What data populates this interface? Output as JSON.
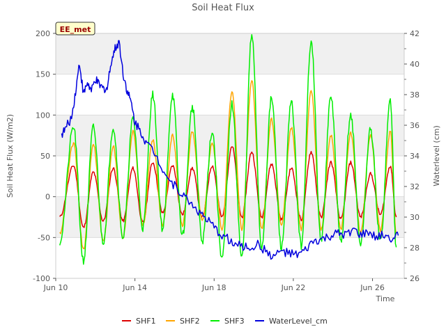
{
  "chart_data": {
    "type": "line",
    "title": "Soil Heat Flux",
    "xlabel": "Time",
    "ylabel": "Soil Heat Flux (W/m2)",
    "y2label": "Waterlevel (cm)",
    "annotation": "EE_met",
    "xlim": [
      0,
      17.6
    ],
    "ylim": [
      -100,
      200
    ],
    "y2lim": [
      26,
      42
    ],
    "xticks": [
      {
        "day": 0,
        "label": "Jun 10"
      },
      {
        "day": 4,
        "label": "Jun 14"
      },
      {
        "day": 8,
        "label": "Jun 18"
      },
      {
        "day": 12,
        "label": "Jun 22"
      },
      {
        "day": 16,
        "label": "Jun 26"
      }
    ],
    "yticks": [
      -100,
      -50,
      0,
      50,
      100,
      150,
      200
    ],
    "y2ticks": [
      26,
      28,
      30,
      32,
      34,
      36,
      38,
      40,
      42
    ],
    "grid": true,
    "legend_position": "bottom",
    "series": [
      {
        "name": "SHF1",
        "color": "#dd0000",
        "axis": "left",
        "peak_day_x": [
          0.9,
          1.9,
          2.9,
          3.9,
          4.9,
          5.9,
          6.9,
          7.9,
          8.9,
          9.9,
          10.9,
          11.9,
          12.9,
          13.9,
          14.9,
          15.9,
          16.9
        ],
        "peak_values": [
          38,
          30,
          35,
          35,
          42,
          38,
          35,
          38,
          62,
          55,
          40,
          35,
          55,
          42,
          42,
          28,
          38
        ],
        "trough_days": [
          0.2,
          1.4,
          2.4,
          3.4,
          4.4,
          5.4,
          6.4,
          7.4,
          8.4,
          9.4,
          10.4,
          11.4,
          12.4,
          13.4,
          14.4,
          15.4,
          16.4,
          17.2
        ],
        "trough_values": [
          -25,
          -38,
          -30,
          -30,
          -32,
          -20,
          -22,
          -25,
          -25,
          -25,
          -25,
          -28,
          -28,
          -25,
          -28,
          -25,
          -22,
          -25
        ]
      },
      {
        "name": "SHF2",
        "color": "#ffa500",
        "axis": "left",
        "peak_day_x": [
          0.9,
          1.9,
          2.9,
          3.9,
          4.9,
          5.9,
          6.9,
          7.9,
          8.9,
          9.9,
          10.9,
          11.9,
          12.9,
          13.9,
          14.9,
          15.9,
          16.9
        ],
        "peak_values": [
          65,
          65,
          62,
          80,
          70,
          75,
          80,
          65,
          128,
          142,
          95,
          85,
          130,
          75,
          78,
          75,
          80
        ],
        "trough_days": [
          0.2,
          1.4,
          2.4,
          3.4,
          4.4,
          5.4,
          6.4,
          7.4,
          8.4,
          9.4,
          10.4,
          11.4,
          12.4,
          13.4,
          14.4,
          15.4,
          16.4,
          17.2
        ],
        "trough_values": [
          -45,
          -65,
          -55,
          -50,
          -35,
          -35,
          -35,
          -30,
          -40,
          -40,
          -40,
          -35,
          -40,
          -40,
          -40,
          -45,
          -42,
          -45
        ]
      },
      {
        "name": "SHF3",
        "color": "#00ee00",
        "axis": "left",
        "peak_day_x": [
          0.9,
          1.9,
          2.9,
          3.9,
          4.9,
          5.9,
          6.9,
          7.9,
          8.9,
          9.9,
          10.9,
          11.9,
          12.9,
          13.9,
          14.9,
          15.9,
          16.9
        ],
        "peak_values": [
          85,
          85,
          85,
          95,
          125,
          125,
          110,
          80,
          113,
          197,
          120,
          115,
          192,
          122,
          100,
          82,
          118
        ],
        "trough_days": [
          0.2,
          1.4,
          2.4,
          3.4,
          4.4,
          5.4,
          6.4,
          7.4,
          8.4,
          9.4,
          10.4,
          11.4,
          12.4,
          13.4,
          14.4,
          15.4,
          16.4,
          17.2
        ],
        "trough_values": [
          -55,
          -78,
          -55,
          -50,
          -38,
          -40,
          -48,
          -55,
          -75,
          -75,
          -62,
          -62,
          -60,
          -55,
          -55,
          -58,
          -55,
          -62
        ]
      },
      {
        "name": "WaterLevel_cm",
        "color": "#0000dd",
        "axis": "right",
        "x": [
          0.3,
          0.5,
          0.8,
          1.0,
          1.2,
          1.4,
          1.6,
          1.8,
          2.0,
          2.2,
          2.4,
          2.6,
          2.8,
          3.0,
          3.2,
          3.4,
          3.6,
          3.8,
          4.0,
          4.3,
          4.6,
          5.0,
          5.4,
          5.8,
          6.2,
          6.6,
          7.0,
          7.4,
          7.8,
          8.2,
          8.6,
          9.0,
          9.4,
          9.8,
          10.2,
          10.6,
          11.0,
          11.4,
          11.8,
          12.2,
          12.6,
          13.0,
          13.4,
          13.8,
          14.2,
          14.6,
          15.0,
          15.4,
          15.8,
          16.2,
          16.6,
          17.0,
          17.3
        ],
        "values": [
          35.4,
          35.8,
          36.5,
          38.2,
          40.1,
          38.0,
          38.8,
          38.2,
          39.0,
          38.6,
          38.4,
          38.4,
          40.2,
          41.0,
          41.5,
          39.4,
          38.3,
          37.5,
          36.2,
          35.6,
          34.8,
          34.2,
          33.2,
          32.3,
          31.8,
          31.2,
          30.7,
          30.1,
          29.6,
          29.0,
          28.7,
          28.2,
          28.1,
          28.0,
          28.2,
          27.8,
          27.4,
          27.8,
          27.6,
          27.5,
          27.8,
          28.4,
          28.5,
          28.7,
          28.9,
          28.8,
          29.2,
          28.8,
          29.0,
          28.6,
          28.9,
          28.6,
          28.8
        ]
      }
    ]
  }
}
